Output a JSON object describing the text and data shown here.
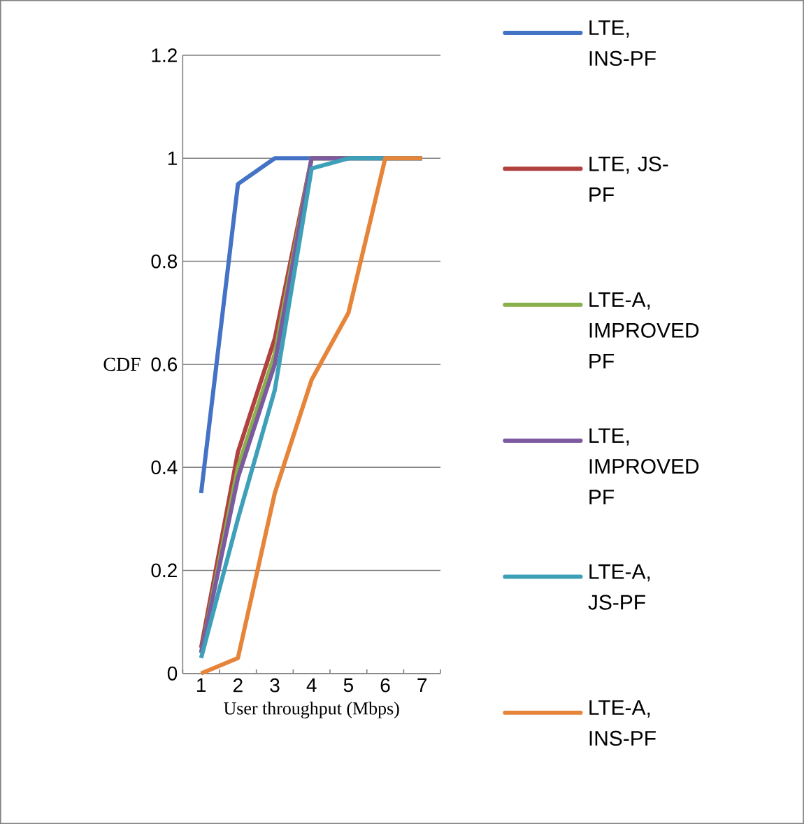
{
  "chart_data": {
    "type": "line",
    "xlabel": "User throughput (Mbps)",
    "ylabel": "CDF",
    "categories": [
      "1",
      "2",
      "3",
      "4",
      "5",
      "6",
      "7"
    ],
    "ylim": [
      0,
      1.2
    ],
    "yticks": [
      0,
      0.2,
      0.4,
      0.6,
      0.8,
      1,
      1.2
    ],
    "grid": "y",
    "legend": "right",
    "marker": "none",
    "series": [
      {
        "name": "LTE, INS-PF",
        "color": "#4472c4",
        "values": [
          0.35,
          0.95,
          1,
          1,
          1,
          1,
          1
        ]
      },
      {
        "name": "LTE, JS-PF",
        "color": "#b0413e",
        "values": [
          0.05,
          0.43,
          0.65,
          1,
          1,
          null,
          null
        ]
      },
      {
        "name": "LTE-A, IMPROVED PF",
        "color": "#8ab04a",
        "values": [
          0.04,
          0.4,
          0.62,
          1,
          1,
          1,
          1
        ]
      },
      {
        "name": "LTE, IMPROVED PF",
        "color": "#7b5aa0",
        "values": [
          0.04,
          0.38,
          0.6,
          1,
          1,
          1,
          1
        ]
      },
      {
        "name": "LTE-A, JS-PF",
        "color": "#3ea0b8",
        "values": [
          0.03,
          0.3,
          0.55,
          0.98,
          1,
          1,
          1
        ]
      },
      {
        "name": "LTE-A, INS-PF",
        "color": "#e6843a",
        "values": [
          0,
          0.03,
          0.35,
          0.57,
          0.7,
          1,
          1
        ]
      }
    ]
  }
}
